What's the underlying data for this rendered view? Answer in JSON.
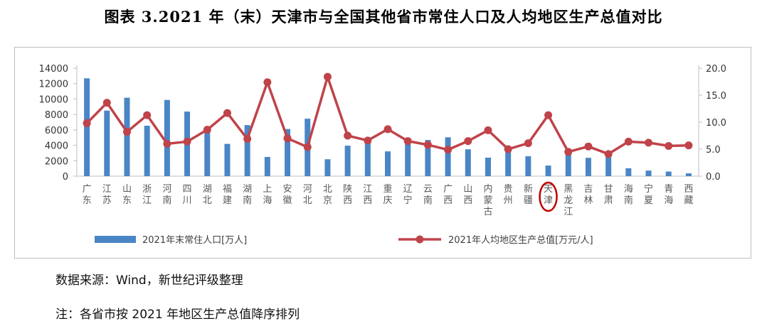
{
  "title": "图表 3.2021 年（末）天津市与全国其他省市常住人口及人均地区生产总值对比",
  "source_note": "数据来源：Wind，新世纪评级整理",
  "order_note": "注：各省市按 2021 年地区生产总值降序排列",
  "chart_data": {
    "type": "bar+line",
    "categories": [
      "广东",
      "江苏",
      "山东",
      "浙江",
      "河南",
      "四川",
      "湖北",
      "福建",
      "湖南",
      "上海",
      "安徽",
      "河北",
      "北京",
      "陕西",
      "江西",
      "重庆",
      "辽宁",
      "云南",
      "广西",
      "山西",
      "内蒙古",
      "贵州",
      "新疆",
      "天津",
      "黑龙江",
      "吉林",
      "甘肃",
      "海南",
      "宁夏",
      "青海",
      "西藏"
    ],
    "highlight_category": "天津",
    "y_left": {
      "ticks": [
        0,
        2000,
        4000,
        6000,
        8000,
        10000,
        12000,
        14000
      ],
      "lim": [
        0,
        14000
      ]
    },
    "y_right": {
      "ticks": [
        "0.0",
        "5.0",
        "10.0",
        "15.0",
        "20.0"
      ],
      "lim": [
        0,
        20
      ]
    },
    "series": [
      {
        "name": "2021年末常住人口[万人]",
        "type": "bar",
        "axis": "left",
        "color": "#4a86c5",
        "values": [
          12684,
          8505,
          10170,
          6540,
          9883,
          8372,
          5830,
          4187,
          6622,
          2489,
          6113,
          7448,
          2189,
          3954,
          4517,
          3212,
          4229,
          4690,
          5037,
          3480,
          2400,
          3852,
          2589,
          1373,
          3125,
          2375,
          2490,
          1020,
          725,
          594,
          366
        ]
      },
      {
        "name": "2021年人均地区生产总值[万元/人]",
        "type": "line",
        "axis": "right",
        "color": "#c0434a",
        "values": [
          9.8,
          13.6,
          8.2,
          11.3,
          6.0,
          6.4,
          8.6,
          11.7,
          6.9,
          17.4,
          7.0,
          5.4,
          18.4,
          7.5,
          6.6,
          8.7,
          6.5,
          5.8,
          4.9,
          6.5,
          8.5,
          5.0,
          6.1,
          11.3,
          4.5,
          5.5,
          4.1,
          6.4,
          6.2,
          5.6,
          5.7
        ]
      }
    ],
    "grid": false,
    "legend_position": "bottom"
  }
}
